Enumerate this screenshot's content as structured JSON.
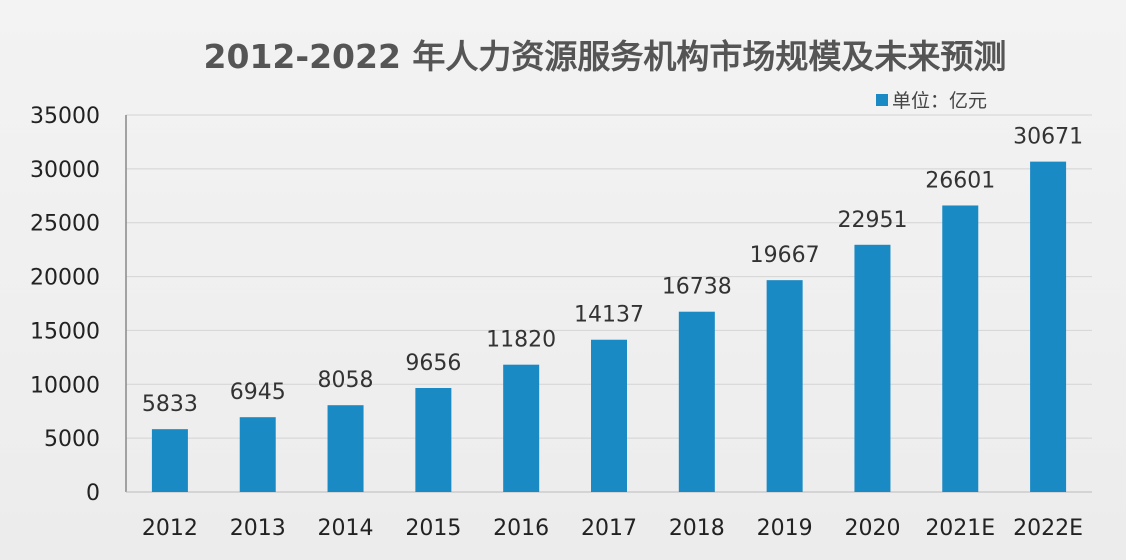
{
  "chart_data": {
    "type": "bar",
    "title": "2012-2022 年人力资源服务机构市场规模及未来预测",
    "legend": "单位：亿元",
    "legend_position": "top-right",
    "categories": [
      "2012",
      "2013",
      "2014",
      "2015",
      "2016",
      "2017",
      "2018",
      "2019",
      "2020",
      "2021E",
      "2022E"
    ],
    "values": [
      5833,
      6945,
      8058,
      9656,
      11820,
      14137,
      16738,
      19667,
      22951,
      26601,
      30671
    ],
    "ylim": [
      0,
      35000
    ],
    "yticks": [
      0,
      5000,
      10000,
      15000,
      20000,
      25000,
      30000,
      35000
    ],
    "grid": true,
    "bar_color": "#1a8ac4",
    "xlabel": "",
    "ylabel": ""
  }
}
